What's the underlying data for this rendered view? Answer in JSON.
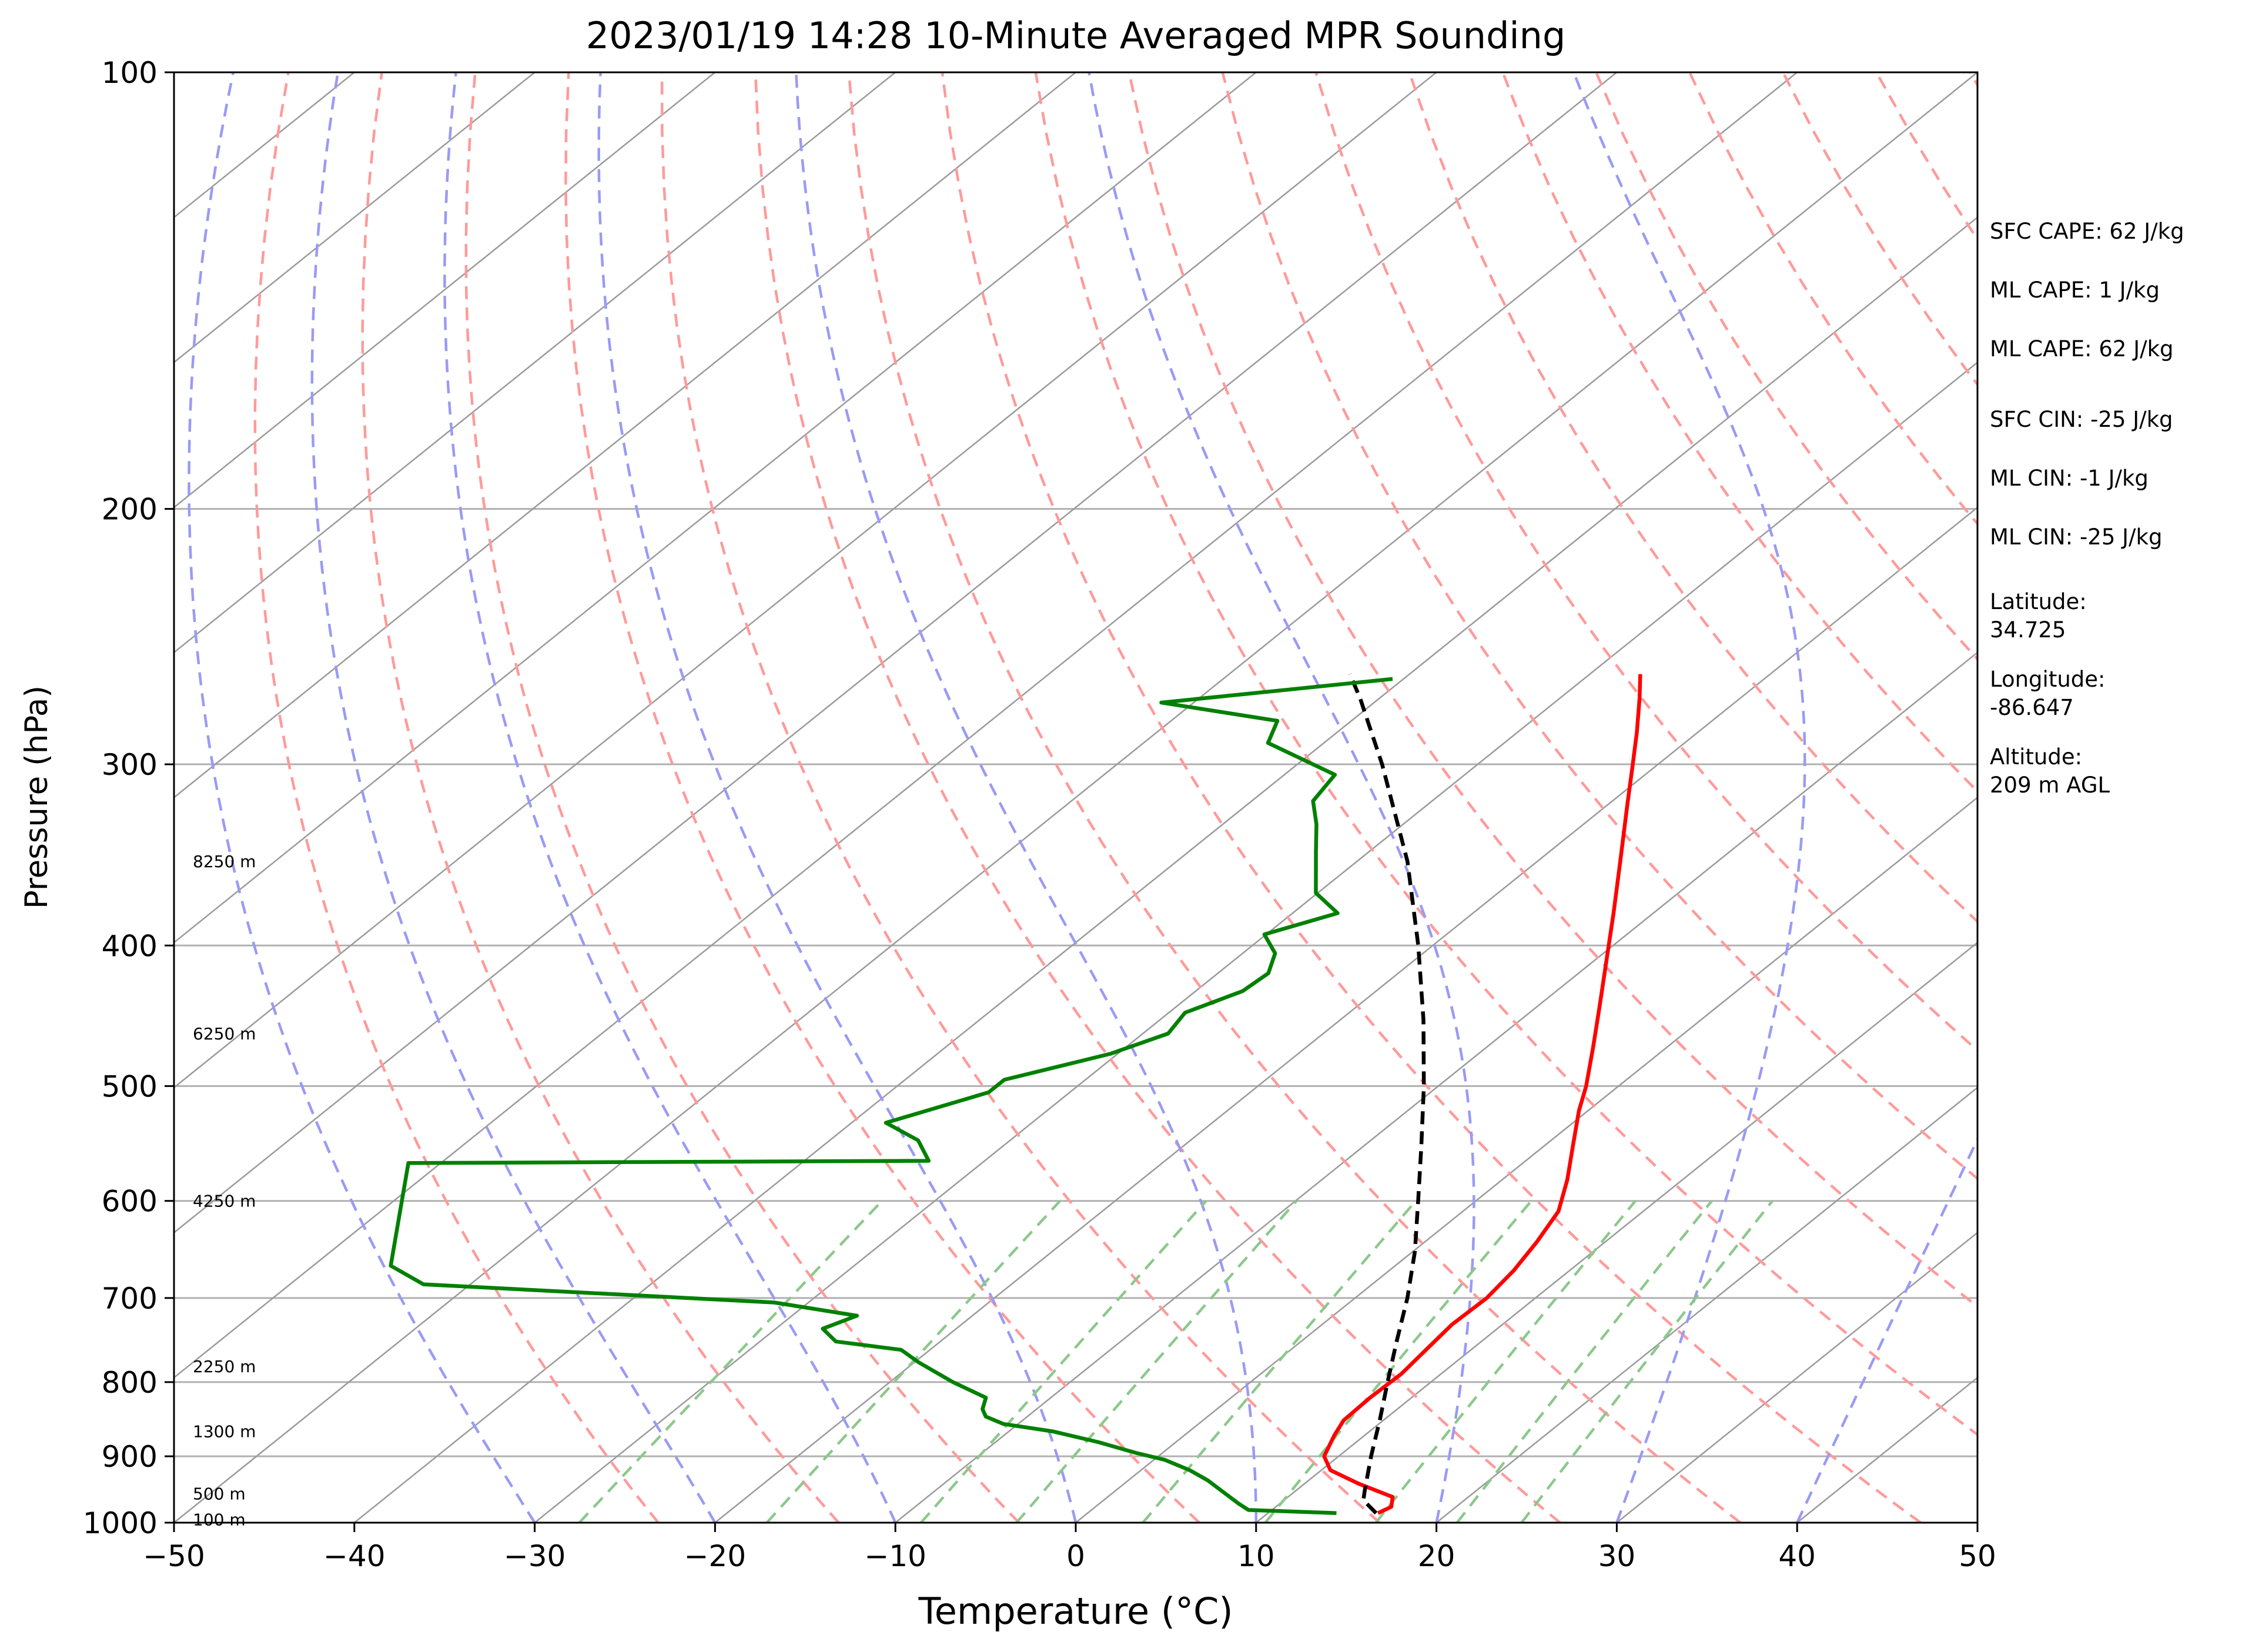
{
  "chart_data": {
    "type": "line",
    "title": "2023/01/19 14:28 10-Minute Averaged MPR Sounding",
    "xlabel": "Temperature (°C)",
    "ylabel": "Pressure (hPa)",
    "xlim": [
      -50,
      50
    ],
    "ylim": [
      1000,
      100
    ],
    "yscale": "log",
    "x_ticks": [
      -50,
      -40,
      -30,
      -20,
      -10,
      0,
      10,
      20,
      30,
      40,
      50
    ],
    "x_tick_labels": [
      "−50",
      "−40",
      "−30",
      "−20",
      "−10",
      "0",
      "10",
      "20",
      "30",
      "40",
      "50"
    ],
    "y_ticks": [
      1000,
      900,
      800,
      700,
      600,
      500,
      400,
      300,
      200,
      100
    ],
    "y_tick_labels": [
      "1000",
      "900",
      "800",
      "700",
      "600",
      "500",
      "400",
      "300",
      "200",
      "100"
    ],
    "grid": true,
    "height_labels": [
      {
        "p": 995,
        "label": "100 m"
      },
      {
        "p": 955,
        "label": "500 m"
      },
      {
        "p": 865,
        "label": "1300 m"
      },
      {
        "p": 780,
        "label": "2250 m"
      },
      {
        "p": 600,
        "label": "4250 m"
      },
      {
        "p": 460,
        "label": "6250 m"
      },
      {
        "p": 350,
        "label": "8250 m"
      }
    ],
    "series": [
      {
        "color": "#ff0000",
        "points": [
          {
            "p": 985,
            "t": 16.1
          },
          {
            "p": 975,
            "t": 16.4
          },
          {
            "p": 960,
            "t": 15.8
          },
          {
            "p": 940,
            "t": 13.0
          },
          {
            "p": 920,
            "t": 10.5
          },
          {
            "p": 900,
            "t": 9.2
          },
          {
            "p": 870,
            "t": 8.3
          },
          {
            "p": 850,
            "t": 7.8
          },
          {
            "p": 820,
            "t": 7.7
          },
          {
            "p": 790,
            "t": 7.8
          },
          {
            "p": 760,
            "t": 7.5
          },
          {
            "p": 730,
            "t": 7.2
          },
          {
            "p": 700,
            "t": 7.3
          },
          {
            "p": 670,
            "t": 6.9
          },
          {
            "p": 640,
            "t": 6.2
          },
          {
            "p": 610,
            "t": 5.3
          },
          {
            "p": 580,
            "t": 3.6
          },
          {
            "p": 550,
            "t": 1.6
          },
          {
            "p": 520,
            "t": -0.5
          },
          {
            "p": 500,
            "t": -1.8
          },
          {
            "p": 470,
            "t": -4.1
          },
          {
            "p": 440,
            "t": -6.6
          },
          {
            "p": 410,
            "t": -9.3
          },
          {
            "p": 380,
            "t": -12.2
          },
          {
            "p": 350,
            "t": -15.4
          },
          {
            "p": 320,
            "t": -18.9
          },
          {
            "p": 300,
            "t": -21.4
          },
          {
            "p": 285,
            "t": -23.4
          },
          {
            "p": 270,
            "t": -25.6
          },
          {
            "p": 260,
            "t": -27.2
          }
        ]
      },
      {
        "color": "#000000",
        "dashed": true,
        "points": [
          {
            "p": 985,
            "t": 16.0
          },
          {
            "p": 965,
            "t": 14.4
          },
          {
            "p": 950,
            "t": 13.8
          },
          {
            "p": 900,
            "t": 11.8
          },
          {
            "p": 850,
            "t": 9.8
          },
          {
            "p": 800,
            "t": 7.6
          },
          {
            "p": 750,
            "t": 5.3
          },
          {
            "p": 700,
            "t": 2.9
          },
          {
            "p": 650,
            "t": 0.1
          },
          {
            "p": 600,
            "t": -3.2
          },
          {
            "p": 550,
            "t": -6.8
          },
          {
            "p": 500,
            "t": -10.8
          },
          {
            "p": 450,
            "t": -15.4
          },
          {
            "p": 400,
            "t": -20.8
          },
          {
            "p": 350,
            "t": -27.2
          },
          {
            "p": 300,
            "t": -35.3
          },
          {
            "p": 270,
            "t": -41.1
          },
          {
            "p": 260,
            "t": -43.3
          }
        ]
      },
      {
        "color": "#008000",
        "points": [
          {
            "p": 985,
            "t": 13.8
          },
          {
            "p": 980,
            "t": 8.7
          },
          {
            "p": 970,
            "t": 7.7
          },
          {
            "p": 955,
            "t": 6.3
          },
          {
            "p": 935,
            "t": 4.4
          },
          {
            "p": 920,
            "t": 2.7
          },
          {
            "p": 905,
            "t": 0.6
          },
          {
            "p": 895,
            "t": -1.5
          },
          {
            "p": 880,
            "t": -4.3
          },
          {
            "p": 865,
            "t": -7.6
          },
          {
            "p": 855,
            "t": -10.8
          },
          {
            "p": 845,
            "t": -12.3
          },
          {
            "p": 835,
            "t": -13.0
          },
          {
            "p": 820,
            "t": -13.6
          },
          {
            "p": 800,
            "t": -16.5
          },
          {
            "p": 775,
            "t": -19.8
          },
          {
            "p": 760,
            "t": -21.6
          },
          {
            "p": 750,
            "t": -25.8
          },
          {
            "p": 735,
            "t": -27.4
          },
          {
            "p": 720,
            "t": -26.4
          },
          {
            "p": 705,
            "t": -31.9
          },
          {
            "p": 685,
            "t": -52.6
          },
          {
            "p": 665,
            "t": -55.7
          },
          {
            "p": 565,
            "t": -61.8
          },
          {
            "p": 563,
            "t": -33.1
          },
          {
            "p": 545,
            "t": -35.1
          },
          {
            "p": 530,
            "t": -38.1
          },
          {
            "p": 505,
            "t": -34.5
          },
          {
            "p": 495,
            "t": -34.5
          },
          {
            "p": 475,
            "t": -30.4
          },
          {
            "p": 460,
            "t": -28.6
          },
          {
            "p": 445,
            "t": -29.1
          },
          {
            "p": 430,
            "t": -27.4
          },
          {
            "p": 418,
            "t": -27.2
          },
          {
            "p": 405,
            "t": -28.2
          },
          {
            "p": 393,
            "t": -30.1
          },
          {
            "p": 380,
            "t": -27.5
          },
          {
            "p": 368,
            "t": -30.1
          },
          {
            "p": 345,
            "t": -32.9
          },
          {
            "p": 330,
            "t": -34.8
          },
          {
            "p": 318,
            "t": -36.6
          },
          {
            "p": 305,
            "t": -37.2
          },
          {
            "p": 290,
            "t": -43.1
          },
          {
            "p": 280,
            "t": -44.1
          },
          {
            "p": 272,
            "t": -51.8
          },
          {
            "p": 262,
            "t": -40.6
          }
        ]
      }
    ]
  },
  "side_info": {
    "sfc_cape": "SFC CAPE: 62 J/kg",
    "ml_cape_1": "ML CAPE: 1 J/kg",
    "ml_cape_2": "ML CAPE: 62 J/kg",
    "sfc_cin": "SFC CIN: -25 J/kg",
    "ml_cin_1": "ML CIN: -1 J/kg",
    "ml_cin_2": "ML CIN: -25 J/kg",
    "latitude_label": "Latitude:",
    "latitude_value": "34.725",
    "longitude_label": "Longitude:",
    "longitude_value": "-86.647",
    "altitude_label": "Altitude:",
    "altitude_value": "209 m AGL"
  },
  "colors": {
    "temperature": "#ff0000",
    "dewpoint": "#008000",
    "parcel": "#000000",
    "dry_adiabats": "#ff9a9a",
    "moist_adiabats": "#9a9af5",
    "mixing_ratio": "#8cc88c",
    "isotherms": "#9a9a9a",
    "isobars": "#b0b0b0"
  }
}
